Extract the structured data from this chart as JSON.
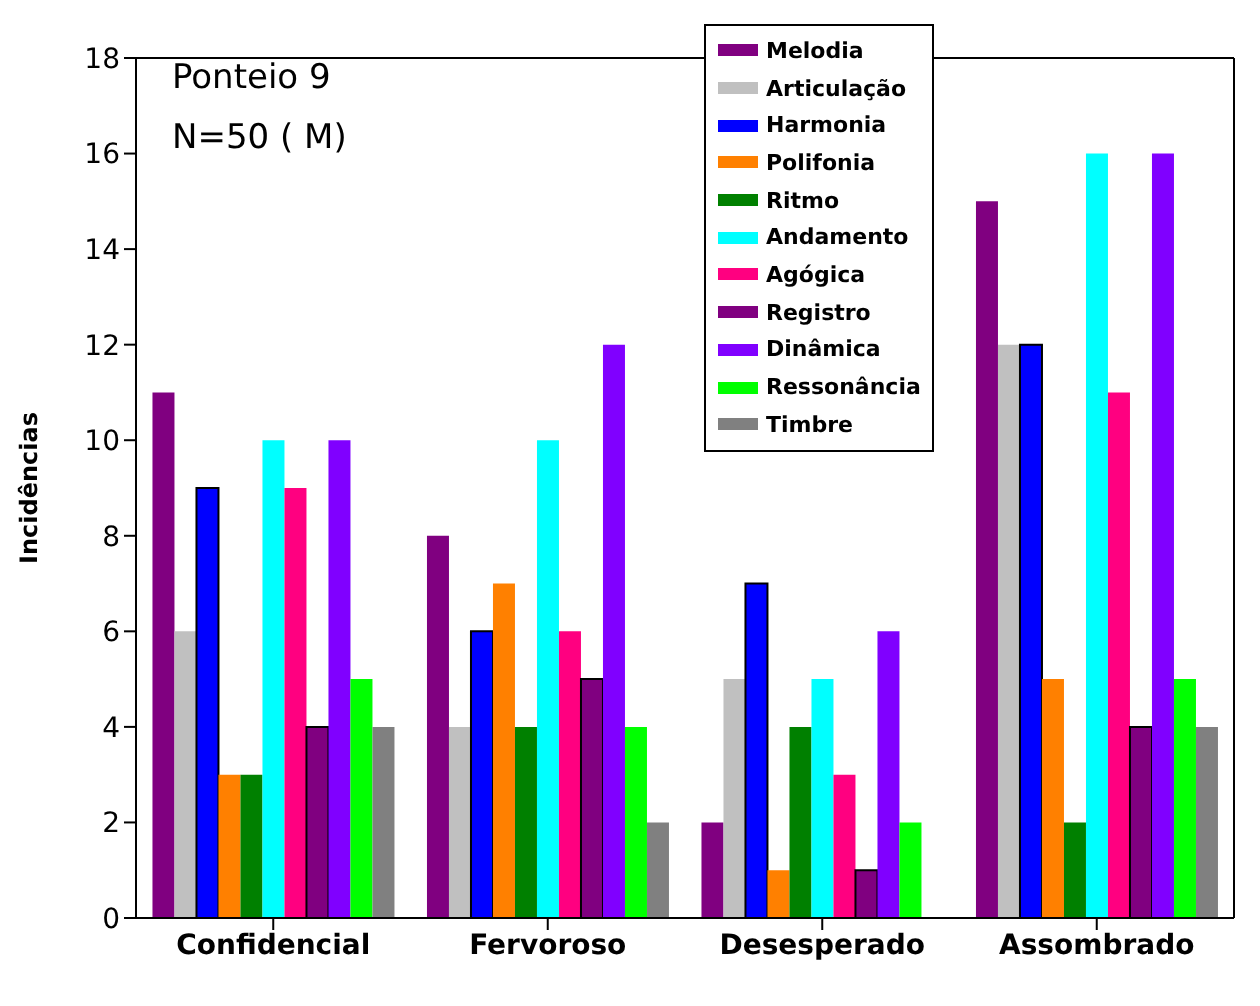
{
  "chart_data": {
    "type": "bar",
    "title": "Ponteio 9",
    "subtitle": "N=50 (   M)",
    "ylabel": "Incidências",
    "categories": [
      "Confidencial",
      "Fervoroso",
      "Desesperado",
      "Assombrado"
    ],
    "series": [
      {
        "name": "Melodia",
        "color": "#800080",
        "values": [
          11,
          8,
          2,
          15
        ]
      },
      {
        "name": "Articulação",
        "color": "#c0c0c0",
        "values": [
          6,
          4,
          5,
          12
        ]
      },
      {
        "name": "Harmonia",
        "color": "#0000ff",
        "values": [
          9,
          6,
          7,
          12
        ]
      },
      {
        "name": "Polifonia",
        "color": "#ff8000",
        "values": [
          3,
          7,
          1,
          5
        ]
      },
      {
        "name": "Ritmo",
        "color": "#008000",
        "values": [
          3,
          4,
          4,
          2
        ]
      },
      {
        "name": "Andamento",
        "color": "#00ffff",
        "values": [
          10,
          10,
          5,
          16
        ]
      },
      {
        "name": "Agógica",
        "color": "#ff0080",
        "values": [
          9,
          6,
          3,
          11
        ]
      },
      {
        "name": "Registro",
        "color": "#800080",
        "values": [
          4,
          5,
          1,
          4
        ]
      },
      {
        "name": "Dinâmica",
        "color": "#8000ff",
        "values": [
          10,
          12,
          6,
          16
        ]
      },
      {
        "name": "Ressonância",
        "color": "#00ff00",
        "values": [
          5,
          4,
          2,
          5
        ]
      },
      {
        "name": "Timbre",
        "color": "#808080",
        "values": [
          4,
          2,
          0,
          4
        ]
      }
    ],
    "ylim": [
      0,
      18
    ],
    "yticks": [
      0,
      2,
      4,
      6,
      8,
      10,
      12,
      14,
      16,
      18
    ],
    "grid": false,
    "legend": "top right"
  }
}
